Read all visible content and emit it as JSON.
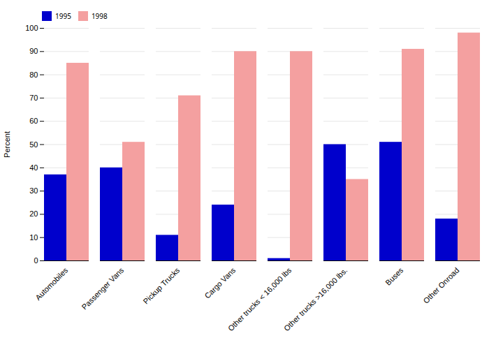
{
  "chart_data": {
    "type": "bar",
    "categories": [
      "Automobiles",
      "Passenger Vans",
      "Pickup Trucks",
      "Cargo Vans",
      "Other trucks < 16,000 lbs",
      "Other trucks >16,000 lbs.",
      "Buses",
      "Other Onroad"
    ],
    "series": [
      {
        "name": "1995",
        "color": "#0000CC",
        "values": [
          37,
          40,
          11,
          24,
          1,
          50,
          51,
          18
        ]
      },
      {
        "name": "1998",
        "color": "#F4A0A0",
        "values": [
          85,
          51,
          71,
          90,
          90,
          35,
          91,
          98
        ]
      }
    ],
    "ylabel": "Percent",
    "ylim": [
      0,
      100
    ],
    "yticks": [
      0,
      10,
      20,
      30,
      40,
      50,
      60,
      70,
      80,
      90,
      100
    ],
    "grid": true,
    "legend": "upper left"
  }
}
